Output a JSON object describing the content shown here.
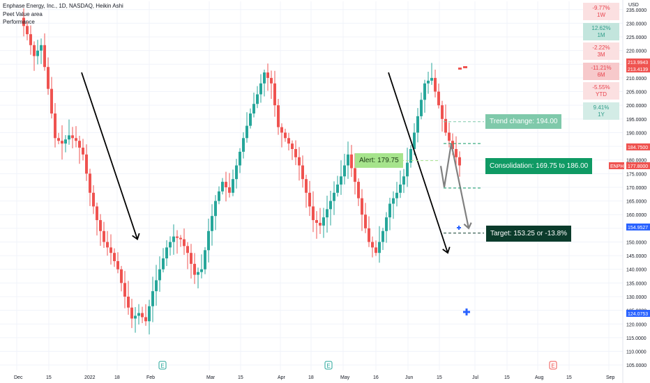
{
  "header": {
    "title": "Enphase Energy, Inc., 1D, NASDAQ, Heikin Ashi",
    "indicator1": "Peet Value area",
    "indicator2": "Performance"
  },
  "axis": {
    "currency": "USD"
  },
  "performance": [
    {
      "value": "-9.77%",
      "period": "1W",
      "tone": "neg"
    },
    {
      "value": "12.62%",
      "period": "1M",
      "tone": "pos2"
    },
    {
      "value": "-2.22%",
      "period": "3M",
      "tone": "neg"
    },
    {
      "value": "-11.21%",
      "period": "6M",
      "tone": "neg2"
    },
    {
      "value": "-5.55%",
      "period": "YTD",
      "tone": "neg"
    },
    {
      "value": "9.41%",
      "period": "1Y",
      "tone": "pos"
    }
  ],
  "annotations": {
    "trend_change": "Trend change: 194.00",
    "alert": "Alert: 179.75",
    "consolidation": "Consolidation: 169.75 to 186.00",
    "target": "Target: 153.25 or -13.8%"
  },
  "price_tags": [
    {
      "label": "213.9943",
      "color": "#ef5350"
    },
    {
      "label": "213.4139",
      "color": "#ef5350"
    },
    {
      "label": "184.7500",
      "color": "#ef5350"
    },
    {
      "label": "ENPH",
      "color": "#ef5350"
    },
    {
      "label": "177.8000",
      "color": "#ef5350"
    },
    {
      "label": "154.9527",
      "color": "#2962ff"
    },
    {
      "label": "124.0753",
      "color": "#2962ff"
    }
  ],
  "colors": {
    "up": "#26a69a",
    "down": "#ef5350",
    "grid": "#f0f3fa"
  },
  "chart_data": {
    "type": "candlestick",
    "style": "Heikin Ashi",
    "symbol": "ENPH",
    "y_ticks": [
      105,
      110,
      115,
      120,
      125,
      130,
      135,
      140,
      145,
      150,
      155,
      160,
      165,
      170,
      175,
      180,
      185,
      190,
      195,
      200,
      205,
      210,
      215,
      220,
      225,
      230,
      235
    ],
    "y_tick_labels": [
      "105.0000",
      "110.0000",
      "115.0000",
      "120.0000",
      "125.0000",
      "130.0000",
      "135.0000",
      "140.0000",
      "145.0000",
      "150.0000",
      "155.0000",
      "160.0000",
      "165.0000",
      "170.0000",
      "175.0000",
      "180.0000",
      "185.0000",
      "190.0000",
      "195.0000",
      "200.0000",
      "205.0000",
      "210.0000",
      "215.0000",
      "220.0000",
      "225.0000",
      "230.0000",
      "235.0000"
    ],
    "x_ticks": [
      "Dec",
      "15",
      "2022",
      "18",
      "Feb",
      "Mar",
      "15",
      "Apr",
      "18",
      "May",
      "16",
      "Jun",
      "15",
      "Jul",
      "15",
      "Aug",
      "15",
      "Sep"
    ],
    "ylim": [
      103,
      238
    ],
    "levels": {
      "trend_change": 194.0,
      "alert": 179.75,
      "consolidation_low": 169.75,
      "consolidation_high": 186.0,
      "target": 153.25
    },
    "price_path": [
      [
        0,
        232
      ],
      [
        2,
        226
      ],
      [
        4,
        218
      ],
      [
        6,
        222
      ],
      [
        8,
        206
      ],
      [
        10,
        188
      ],
      [
        12,
        186
      ],
      [
        14,
        189
      ],
      [
        16,
        187
      ],
      [
        18,
        182
      ],
      [
        20,
        168
      ],
      [
        22,
        158
      ],
      [
        24,
        150
      ],
      [
        26,
        146
      ],
      [
        28,
        140
      ],
      [
        30,
        130
      ],
      [
        32,
        122
      ],
      [
        34,
        124
      ],
      [
        36,
        121
      ],
      [
        38,
        132
      ],
      [
        40,
        140
      ],
      [
        42,
        148
      ],
      [
        44,
        152
      ],
      [
        46,
        151
      ],
      [
        48,
        146
      ],
      [
        50,
        138
      ],
      [
        52,
        140
      ],
      [
        54,
        154
      ],
      [
        56,
        165
      ],
      [
        58,
        172
      ],
      [
        60,
        168
      ],
      [
        62,
        178
      ],
      [
        64,
        188
      ],
      [
        66,
        197
      ],
      [
        68,
        204
      ],
      [
        70,
        212
      ],
      [
        72,
        208
      ],
      [
        74,
        192
      ],
      [
        76,
        188
      ],
      [
        78,
        184
      ],
      [
        80,
        178
      ],
      [
        82,
        168
      ],
      [
        84,
        158
      ],
      [
        86,
        156
      ],
      [
        88,
        162
      ],
      [
        90,
        168
      ],
      [
        92,
        174
      ],
      [
        94,
        182
      ],
      [
        96,
        172
      ],
      [
        98,
        160
      ],
      [
        100,
        150
      ],
      [
        102,
        146
      ],
      [
        104,
        154
      ],
      [
        106,
        164
      ],
      [
        108,
        168
      ],
      [
        110,
        174
      ],
      [
        112,
        184
      ],
      [
        114,
        196
      ],
      [
        116,
        208
      ],
      [
        118,
        210
      ],
      [
        120,
        200
      ],
      [
        122,
        190
      ],
      [
        124,
        184
      ],
      [
        126,
        178
      ]
    ],
    "arrows": [
      {
        "points": [
          [
            17,
            212
          ],
          [
            33,
            151
          ]
        ]
      },
      {
        "points": [
          [
            105,
            212
          ],
          [
            122,
            146
          ]
        ]
      }
    ],
    "projection": [
      [
        120,
        177.8
      ],
      [
        121,
        170
      ],
      [
        123,
        186
      ],
      [
        128,
        155
      ]
    ],
    "earnings_markers": [
      "E",
      "E",
      "E"
    ]
  }
}
